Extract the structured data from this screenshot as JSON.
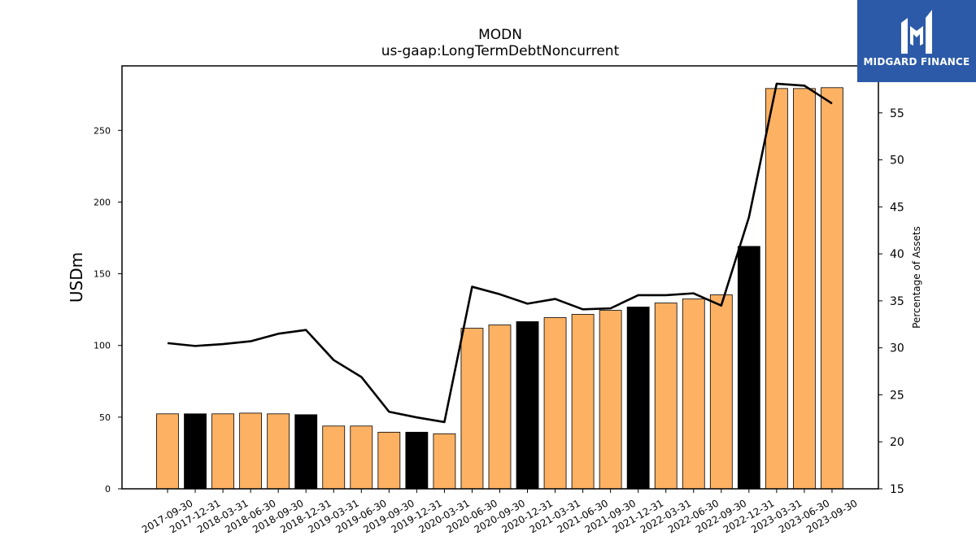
{
  "chart_data": {
    "type": "bar",
    "title": "MODN",
    "subtitle": "us-gaap:LongTermDebtNoncurrent",
    "ylabel": "USDm",
    "y2label": "Percentage of Assets",
    "ylim": [
      0,
      295
    ],
    "y2lim": [
      15,
      60
    ],
    "yticks": [
      "0",
      "50",
      "100",
      "150",
      "200",
      "250"
    ],
    "y2ticks": [
      "15",
      "20",
      "25",
      "30",
      "35",
      "40",
      "45",
      "50",
      "55"
    ],
    "categories": [
      "2017-09-30",
      "2017-12-31",
      "2018-03-31",
      "2018-06-30",
      "2018-09-30",
      "2018-12-31",
      "2019-03-31",
      "2019-06-30",
      "2019-09-30",
      "2019-12-31",
      "2020-03-31",
      "2020-06-30",
      "2020-09-30",
      "2020-12-31",
      "2021-03-31",
      "2021-06-30",
      "2021-09-30",
      "2021-12-31",
      "2022-03-31",
      "2022-06-30",
      "2022-09-30",
      "2022-12-31",
      "2023-03-31",
      "2023-06-30",
      "2023-09-30"
    ],
    "series": [
      {
        "type": "bar",
        "axis": "left",
        "values": [
          52.3,
          52.3,
          52.3,
          52.8,
          52.3,
          51.7,
          43.8,
          43.8,
          39.5,
          39.5,
          38.4,
          112.0,
          114.3,
          116.6,
          119.4,
          121.7,
          124.5,
          126.8,
          129.6,
          132.4,
          135.3,
          169.1,
          279.2,
          279.2,
          279.8
        ]
      },
      {
        "type": "line",
        "axis": "right",
        "values": [
          30.5,
          30.2,
          30.4,
          30.7,
          31.5,
          31.9,
          28.7,
          26.9,
          23.2,
          22.6,
          22.1,
          36.5,
          35.7,
          34.7,
          35.2,
          34.1,
          34.2,
          35.6,
          35.6,
          35.8,
          34.5,
          43.9,
          58.1,
          57.9,
          56.0
        ]
      }
    ],
    "bar_colors": {
      "default": "#fdb163",
      "year_end": "#000000"
    },
    "line_color": "#000000"
  },
  "logo": {
    "text": "MIDGARD FINANCE",
    "background": "#2c5aa8"
  }
}
